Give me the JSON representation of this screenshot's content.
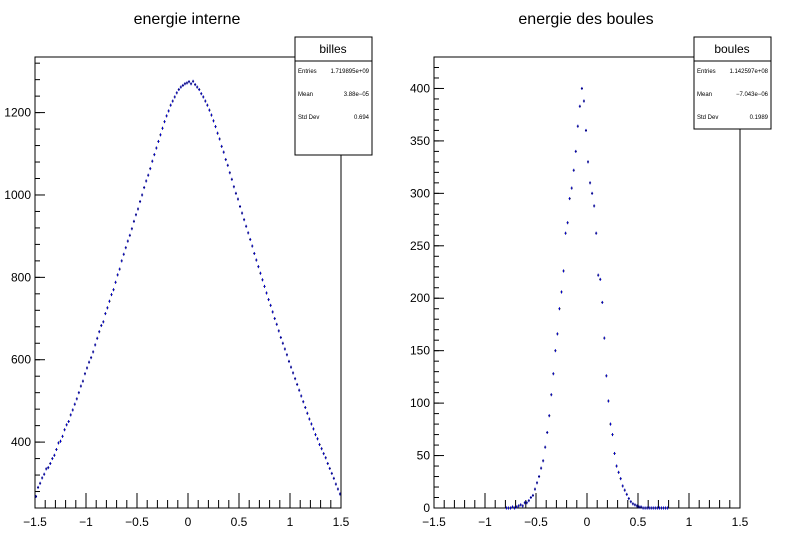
{
  "chart_data": [
    {
      "type": "scatter",
      "title": "energie interne",
      "xlabel": "",
      "ylabel": "",
      "xlim": [
        -1.5,
        1.5
      ],
      "ylim": [
        240,
        1335
      ],
      "xticks": [
        -1.5,
        -1,
        -0.5,
        0,
        0.5,
        1,
        1.5
      ],
      "xtick_labels": [
        "−1.5",
        "−1",
        "−0.5",
        "0",
        "0.5",
        "1",
        "1.5"
      ],
      "yticks": [
        400,
        600,
        800,
        1000,
        1200
      ],
      "ytick_labels": [
        "400",
        "600",
        "800",
        "1000",
        "1200"
      ],
      "grid": false,
      "marker_color": "#0000cc",
      "stats": {
        "name": "billes",
        "rows": [
          {
            "label": "Entries",
            "value": "1.719895e+09"
          },
          {
            "label": "Mean",
            "value": "3.88e−05"
          },
          {
            "label": "Std Dev",
            "value": "0.694"
          }
        ]
      },
      "series": [
        {
          "x": [
            -1.49,
            -1.47,
            -1.45,
            -1.43,
            -1.41,
            -1.39,
            -1.37,
            -1.35,
            -1.33,
            -1.31,
            -1.29,
            -1.27,
            -1.25,
            -1.23,
            -1.21,
            -1.19,
            -1.17,
            -1.15,
            -1.13,
            -1.11,
            -1.09,
            -1.07,
            -1.05,
            -1.03,
            -1.01,
            -0.99,
            -0.97,
            -0.95,
            -0.93,
            -0.91,
            -0.89,
            -0.87,
            -0.85,
            -0.83,
            -0.81,
            -0.79,
            -0.77,
            -0.75,
            -0.73,
            -0.71,
            -0.69,
            -0.67,
            -0.65,
            -0.63,
            -0.61,
            -0.59,
            -0.57,
            -0.55,
            -0.53,
            -0.51,
            -0.49,
            -0.47,
            -0.45,
            -0.43,
            -0.41,
            -0.39,
            -0.37,
            -0.35,
            -0.33,
            -0.31,
            -0.29,
            -0.27,
            -0.25,
            -0.23,
            -0.21,
            -0.19,
            -0.17,
            -0.15,
            -0.13,
            -0.11,
            -0.09,
            -0.07,
            -0.05,
            -0.03,
            -0.01,
            0.01,
            0.03,
            0.05,
            0.07,
            0.09,
            0.11,
            0.13,
            0.15,
            0.17,
            0.19,
            0.21,
            0.23,
            0.25,
            0.27,
            0.29,
            0.31,
            0.33,
            0.35,
            0.37,
            0.39,
            0.41,
            0.43,
            0.45,
            0.47,
            0.49,
            0.51,
            0.53,
            0.55,
            0.57,
            0.59,
            0.61,
            0.63,
            0.65,
            0.67,
            0.69,
            0.71,
            0.73,
            0.75,
            0.77,
            0.79,
            0.81,
            0.83,
            0.85,
            0.87,
            0.89,
            0.91,
            0.93,
            0.95,
            0.97,
            0.99,
            1.01,
            1.03,
            1.05,
            1.07,
            1.09,
            1.11,
            1.13,
            1.15,
            1.17,
            1.19,
            1.21,
            1.23,
            1.25,
            1.27,
            1.29,
            1.31,
            1.33,
            1.35,
            1.37,
            1.39,
            1.41,
            1.43,
            1.45,
            1.47,
            1.49
          ],
          "y": [
            268,
            290,
            300,
            313,
            322,
            335,
            338,
            348,
            360,
            368,
            382,
            398,
            402,
            414,
            430,
            442,
            450,
            466,
            478,
            492,
            505,
            520,
            536,
            548,
            566,
            580,
            594,
            605,
            619,
            636,
            652,
            668,
            683,
            692,
            712,
            726,
            742,
            758,
            770,
            788,
            806,
            820,
            840,
            856,
            872,
            888,
            902,
            918,
            936,
            952,
            966,
            984,
            1000,
            1018,
            1034,
            1048,
            1064,
            1082,
            1098,
            1114,
            1130,
            1146,
            1162,
            1178,
            1192,
            1204,
            1218,
            1228,
            1238,
            1248,
            1256,
            1262,
            1266,
            1270,
            1272,
            1275,
            1270,
            1276,
            1268,
            1262,
            1256,
            1246,
            1238,
            1228,
            1218,
            1206,
            1194,
            1180,
            1166,
            1150,
            1136,
            1118,
            1104,
            1086,
            1072,
            1054,
            1038,
            1020,
            1004,
            990,
            972,
            956,
            940,
            924,
            908,
            892,
            876,
            858,
            842,
            826,
            810,
            794,
            778,
            762,
            746,
            732,
            716,
            700,
            686,
            670,
            654,
            640,
            626,
            612,
            596,
            582,
            568,
            554,
            540,
            526,
            512,
            498,
            484,
            470,
            456,
            444,
            432,
            418,
            408,
            394,
            384,
            372,
            362,
            348,
            336,
            324,
            312,
            298,
            286,
            274
          ]
        }
      ]
    },
    {
      "type": "scatter",
      "title": "energie des boules",
      "xlabel": "",
      "ylabel": "",
      "xlim": [
        -1.5,
        1.5
      ],
      "ylim": [
        0,
        430
      ],
      "xticks": [
        -1.5,
        -1,
        -0.5,
        0,
        0.5,
        1,
        1.5
      ],
      "xtick_labels": [
        "−1.5",
        "−1",
        "−0.5",
        "0",
        "0.5",
        "1",
        "1.5"
      ],
      "yticks": [
        0,
        50,
        100,
        150,
        200,
        250,
        300,
        350,
        400
      ],
      "ytick_labels": [
        "0",
        "50",
        "100",
        "150",
        "200",
        "250",
        "300",
        "350",
        "400"
      ],
      "grid": false,
      "marker_color": "#0000cc",
      "stats": {
        "name": "boules",
        "rows": [
          {
            "label": "Entries",
            "value": "1.142597e+08"
          },
          {
            "label": "Mean",
            "value": "−7.043e−06"
          },
          {
            "label": "Std Dev",
            "value": "0.1989"
          }
        ]
      },
      "series": [
        {
          "x": [
            -0.79,
            -0.77,
            -0.75,
            -0.73,
            -0.71,
            -0.69,
            -0.67,
            -0.65,
            -0.63,
            -0.61,
            -0.59,
            -0.57,
            -0.55,
            -0.53,
            -0.51,
            -0.49,
            -0.47,
            -0.45,
            -0.43,
            -0.41,
            -0.39,
            -0.37,
            -0.35,
            -0.33,
            -0.31,
            -0.29,
            -0.27,
            -0.25,
            -0.23,
            -0.21,
            -0.19,
            -0.17,
            -0.15,
            -0.13,
            -0.11,
            -0.09,
            -0.07,
            -0.05,
            -0.03,
            -0.01,
            0.01,
            0.03,
            0.05,
            0.07,
            0.09,
            0.11,
            0.13,
            0.15,
            0.17,
            0.19,
            0.21,
            0.23,
            0.25,
            0.27,
            0.29,
            0.31,
            0.33,
            0.35,
            0.37,
            0.39,
            0.41,
            0.43,
            0.45,
            0.47,
            0.49,
            0.51,
            0.53,
            0.55,
            0.57,
            0.59,
            0.61,
            0.63,
            0.65,
            0.67,
            0.69,
            0.71,
            0.73,
            0.75,
            0.77,
            0.79
          ],
          "y": [
            0,
            0,
            0,
            1,
            0,
            1,
            2,
            3,
            2,
            5,
            5,
            7,
            10,
            12,
            18,
            24,
            30,
            38,
            45,
            58,
            72,
            88,
            108,
            128,
            150,
            166,
            190,
            206,
            226,
            262,
            272,
            295,
            305,
            322,
            340,
            364,
            383,
            400,
            388,
            360,
            330,
            310,
            300,
            288,
            262,
            222,
            218,
            196,
            162,
            126,
            102,
            80,
            70,
            52,
            40,
            34,
            28,
            21,
            17,
            13,
            9,
            6,
            4,
            3,
            2,
            1,
            1,
            0,
            0,
            0,
            0,
            0,
            0,
            0,
            0,
            0,
            0,
            0,
            0,
            0
          ]
        }
      ]
    }
  ]
}
